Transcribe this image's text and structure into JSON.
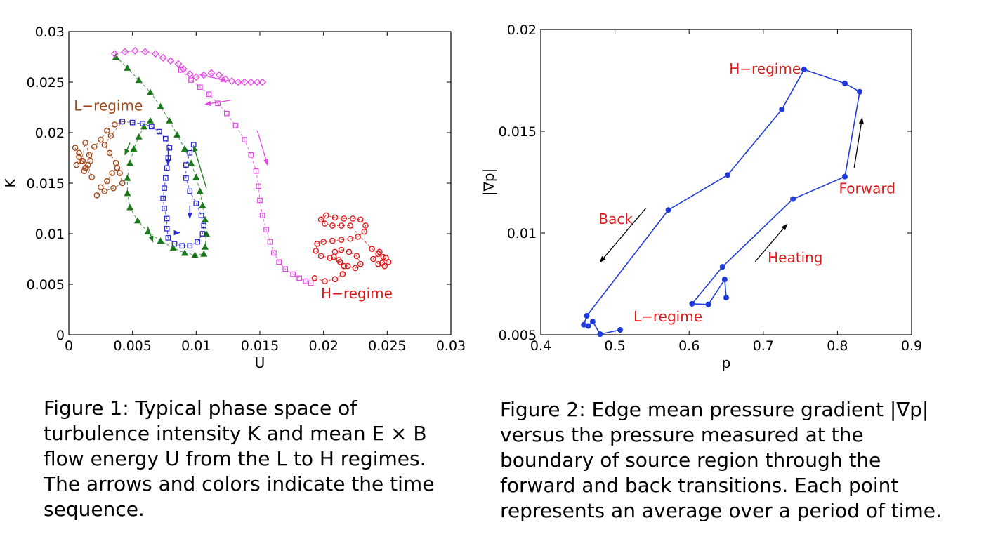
{
  "chart_data": [
    {
      "type": "scatter",
      "xlabel": "U",
      "ylabel": "K",
      "xlim": [
        0,
        0.03
      ],
      "ylim": [
        0,
        0.03
      ],
      "xticks": [
        "0",
        "0.005",
        "0.01",
        "0.015",
        "0.02",
        "0.025",
        "0.03"
      ],
      "yticks": [
        "0",
        "0.005",
        "0.01",
        "0.015",
        "0.02",
        "0.025",
        "0.03"
      ],
      "annotations": [
        {
          "text": "L−regime",
          "x": 0.0004,
          "y": 0.0222,
          "color": "#9b4a1c"
        },
        {
          "text": "H−regime",
          "x": 0.0198,
          "y": 0.0036,
          "color": "#e0191b"
        }
      ],
      "series": [
        {
          "marker": "circle",
          "color": "#a0481b",
          "points": [
            [
              0.0005,
              0.0185
            ],
            [
              0.0008,
              0.0176
            ],
            [
              0.0006,
              0.0168
            ],
            [
              0.001,
              0.0172
            ],
            [
              0.0013,
              0.019
            ],
            [
              0.0016,
              0.0178
            ],
            [
              0.0012,
              0.0162
            ],
            [
              0.0015,
              0.0168
            ],
            [
              0.0018,
              0.0156
            ],
            [
              0.0011,
              0.0172
            ],
            [
              0.0008,
              0.018
            ],
            [
              0.0013,
              0.0165
            ],
            [
              0.0017,
              0.0172
            ],
            [
              0.002,
              0.0186
            ],
            [
              0.0025,
              0.0193
            ],
            [
              0.003,
              0.0202
            ],
            [
              0.0036,
              0.0208
            ],
            [
              0.0042,
              0.0211
            ],
            [
              0.0033,
              0.0197
            ],
            [
              0.0028,
              0.0188
            ],
            [
              0.0032,
              0.018
            ],
            [
              0.0037,
              0.017
            ],
            [
              0.004,
              0.016
            ],
            [
              0.0042,
              0.015
            ],
            [
              0.0035,
              0.0145
            ],
            [
              0.0028,
              0.0142
            ],
            [
              0.0022,
              0.0138
            ],
            [
              0.0025,
              0.0146
            ],
            [
              0.003,
              0.0152
            ],
            [
              0.0034,
              0.016
            ],
            [
              0.0038,
              0.0165
            ]
          ]
        },
        {
          "marker": "triangle",
          "color": "#1a7a1a",
          "points": [
            [
              0.0037,
              0.0275
            ],
            [
              0.0046,
              0.0264
            ],
            [
              0.0055,
              0.0252
            ],
            [
              0.0064,
              0.024
            ],
            [
              0.0072,
              0.0226
            ],
            [
              0.0079,
              0.0212
            ],
            [
              0.0085,
              0.0198
            ],
            [
              0.0091,
              0.0184
            ],
            [
              0.0096,
              0.017
            ],
            [
              0.01,
              0.0156
            ],
            [
              0.0103,
              0.0142
            ],
            [
              0.0105,
              0.0128
            ],
            [
              0.0107,
              0.0114
            ],
            [
              0.0108,
              0.01
            ],
            [
              0.0107,
              0.0087
            ],
            [
              0.0106,
              0.008
            ],
            [
              0.0099,
              0.0079
            ],
            [
              0.0091,
              0.0081
            ],
            [
              0.0082,
              0.0086
            ],
            [
              0.0072,
              0.0093
            ],
            [
              0.0062,
              0.0102
            ],
            [
              0.0054,
              0.0113
            ],
            [
              0.0048,
              0.0126
            ],
            [
              0.0046,
              0.014
            ],
            [
              0.0046,
              0.0155
            ],
            [
              0.0048,
              0.017
            ],
            [
              0.0051,
              0.0184
            ],
            [
              0.0055,
              0.0196
            ],
            [
              0.0059,
              0.0206
            ],
            [
              0.0064,
              0.0212
            ]
          ]
        },
        {
          "marker": "square",
          "color": "#2a2ad0",
          "points": [
            [
              0.0042,
              0.0211
            ],
            [
              0.005,
              0.021
            ],
            [
              0.0058,
              0.0209
            ],
            [
              0.0065,
              0.0206
            ],
            [
              0.0071,
              0.0201
            ],
            [
              0.0076,
              0.0194
            ],
            [
              0.0079,
              0.0185
            ],
            [
              0.0078,
              0.0175
            ],
            [
              0.0077,
              0.0165
            ],
            [
              0.0076,
              0.0155
            ],
            [
              0.0075,
              0.0145
            ],
            [
              0.0074,
              0.0135
            ],
            [
              0.0075,
              0.0125
            ],
            [
              0.0077,
              0.0115
            ],
            [
              0.0077,
              0.0105
            ],
            [
              0.0078,
              0.0096
            ],
            [
              0.0083,
              0.009
            ],
            [
              0.0089,
              0.0088
            ],
            [
              0.0095,
              0.0088
            ],
            [
              0.0101,
              0.0092
            ],
            [
              0.0105,
              0.01
            ],
            [
              0.0106,
              0.0108
            ],
            [
              0.0104,
              0.0118
            ],
            [
              0.01,
              0.013
            ],
            [
              0.0095,
              0.0142
            ],
            [
              0.0092,
              0.0155
            ],
            [
              0.0092,
              0.0168
            ],
            [
              0.0095,
              0.018
            ],
            [
              0.0098,
              0.0188
            ]
          ]
        },
        {
          "marker": "diamond",
          "color": "#e34ae3",
          "points": [
            [
              0.0036,
              0.0278
            ],
            [
              0.0044,
              0.028
            ],
            [
              0.0052,
              0.0281
            ],
            [
              0.006,
              0.028
            ],
            [
              0.0068,
              0.0278
            ],
            [
              0.0074,
              0.0274
            ],
            [
              0.008,
              0.0271
            ],
            [
              0.0086,
              0.0268
            ],
            [
              0.009,
              0.0263
            ],
            [
              0.0095,
              0.0258
            ],
            [
              0.01,
              0.0255
            ],
            [
              0.0106,
              0.0257
            ],
            [
              0.0112,
              0.0259
            ],
            [
              0.0118,
              0.0257
            ],
            [
              0.0123,
              0.0253
            ],
            [
              0.0128,
              0.0251
            ],
            [
              0.0133,
              0.025
            ],
            [
              0.0138,
              0.025
            ],
            [
              0.0143,
              0.025
            ],
            [
              0.0148,
              0.025
            ],
            [
              0.0152,
              0.025
            ]
          ]
        },
        {
          "marker": "square",
          "color": "#e34ae3",
          "points": [
            [
              0.0088,
              0.0262
            ],
            [
              0.0096,
              0.0252
            ],
            [
              0.0103,
              0.0245
            ],
            [
              0.011,
              0.0238
            ],
            [
              0.0117,
              0.0229
            ],
            [
              0.0124,
              0.0219
            ],
            [
              0.0131,
              0.0207
            ],
            [
              0.0138,
              0.0193
            ],
            [
              0.0143,
              0.0178
            ],
            [
              0.0147,
              0.0162
            ],
            [
              0.0149,
              0.0147
            ],
            [
              0.015,
              0.0133
            ],
            [
              0.0152,
              0.0118
            ],
            [
              0.0155,
              0.0104
            ],
            [
              0.0158,
              0.0092
            ],
            [
              0.0161,
              0.0081
            ],
            [
              0.0165,
              0.0072
            ],
            [
              0.017,
              0.0065
            ],
            [
              0.0176,
              0.006
            ],
            [
              0.0181,
              0.0056
            ],
            [
              0.0186,
              0.0053
            ],
            [
              0.019,
              0.0051
            ]
          ]
        },
        {
          "marker": "circle",
          "color": "#e0191b",
          "points": [
            [
              0.0193,
              0.0056
            ],
            [
              0.0201,
              0.0053
            ],
            [
              0.0209,
              0.0055
            ],
            [
              0.0215,
              0.006
            ],
            [
              0.0216,
              0.0068
            ],
            [
              0.0212,
              0.0074
            ],
            [
              0.0208,
              0.0077
            ],
            [
              0.0209,
              0.0082
            ],
            [
              0.0214,
              0.0084
            ],
            [
              0.022,
              0.0082
            ],
            [
              0.0226,
              0.0078
            ],
            [
              0.0229,
              0.007
            ],
            [
              0.0225,
              0.0066
            ],
            [
              0.0219,
              0.0068
            ],
            [
              0.0213,
              0.0072
            ],
            [
              0.0205,
              0.0076
            ],
            [
              0.0198,
              0.0078
            ],
            [
              0.0194,
              0.0083
            ],
            [
              0.0195,
              0.009
            ],
            [
              0.02,
              0.0092
            ],
            [
              0.0207,
              0.0093
            ],
            [
              0.0214,
              0.0094
            ],
            [
              0.0221,
              0.0095
            ],
            [
              0.0227,
              0.0097
            ],
            [
              0.0232,
              0.0102
            ],
            [
              0.0233,
              0.0108
            ],
            [
              0.0229,
              0.0114
            ],
            [
              0.0223,
              0.0115
            ],
            [
              0.0216,
              0.0115
            ],
            [
              0.0209,
              0.0116
            ],
            [
              0.0202,
              0.0118
            ],
            [
              0.0198,
              0.0114
            ],
            [
              0.0201,
              0.011
            ],
            [
              0.0207,
              0.0108
            ],
            [
              0.0214,
              0.0108
            ],
            [
              0.0221,
              0.0108
            ],
            [
              0.0238,
              0.0085
            ],
            [
              0.0243,
              0.008
            ],
            [
              0.0247,
              0.0077
            ],
            [
              0.0251,
              0.0072
            ],
            [
              0.0248,
              0.0068
            ],
            [
              0.0243,
              0.007
            ],
            [
              0.0239,
              0.0075
            ],
            [
              0.0244,
              0.0082
            ],
            [
              0.0249,
              0.0076
            ],
            [
              0.0246,
              0.0071
            ]
          ]
        }
      ],
      "arrows": [
        {
          "from": [
            0.0102,
            0.0258
          ],
          "to": [
            0.0124,
            0.0251
          ],
          "color": "#e34ae3"
        },
        {
          "from": [
            0.0127,
            0.0232
          ],
          "to": [
            0.0107,
            0.0228
          ],
          "color": "#e34ae3"
        },
        {
          "from": [
            0.0148,
            0.0202
          ],
          "to": [
            0.0156,
            0.0168
          ],
          "color": "#e34ae3"
        },
        {
          "from": [
            0.0048,
            0.019
          ],
          "to": [
            0.0044,
            0.0178
          ],
          "color": "#1a7a1a"
        },
        {
          "from": [
            0.0062,
            0.0107
          ],
          "to": [
            0.0066,
            0.0092
          ],
          "color": "#1a7a1a"
        },
        {
          "from": [
            0.0108,
            0.0145
          ],
          "to": [
            0.0098,
            0.0187
          ],
          "color": "#1a7a1a"
        },
        {
          "from": [
            0.0078,
            0.0185
          ],
          "to": [
            0.0078,
            0.0168
          ],
          "color": "#2a2ad0"
        },
        {
          "from": [
            0.0083,
            0.0101
          ],
          "to": [
            0.0087,
            0.0101
          ],
          "color": "#2a2ad0"
        },
        {
          "from": [
            0.0095,
            0.0128
          ],
          "to": [
            0.0095,
            0.0115
          ],
          "color": "#2a2ad0"
        }
      ]
    },
    {
      "type": "line",
      "xlabel": "p",
      "ylabel": "|∇p|",
      "xlim": [
        0.4,
        0.9
      ],
      "ylim": [
        0.005,
        0.02
      ],
      "xticks": [
        "0.4",
        "0.5",
        "0.6",
        "0.7",
        "0.8",
        "0.9"
      ],
      "yticks": [
        "0.005",
        "0.01",
        "0.015",
        "0.02"
      ],
      "series": [
        {
          "color": "#1f3ad6",
          "points": [
            [
              0.507,
              0.00524
            ],
            [
              0.48,
              0.00503
            ],
            [
              0.47,
              0.00565
            ],
            [
              0.464,
              0.00543
            ],
            [
              0.458,
              0.00549
            ],
            [
              0.462,
              0.00593
            ],
            [
              0.572,
              0.01113
            ],
            [
              0.652,
              0.01285
            ],
            [
              0.725,
              0.01607
            ],
            [
              0.755,
              0.01803
            ],
            [
              0.81,
              0.01735
            ],
            [
              0.83,
              0.01694
            ],
            [
              0.81,
              0.01277
            ],
            [
              0.74,
              0.01167
            ],
            [
              0.645,
              0.00834
            ],
            [
              0.604,
              0.00652
            ],
            [
              0.626,
              0.00649
            ],
            [
              0.648,
              0.00772
            ],
            [
              0.65,
              0.00682
            ]
          ]
        }
      ],
      "annotations": [
        {
          "text": "H−regime",
          "x": 0.654,
          "y": 0.01783,
          "color": "#e0191b"
        },
        {
          "text": "Forward",
          "x": 0.802,
          "y": 0.01195,
          "color": "#e0191b"
        },
        {
          "text": "Back",
          "x": 0.478,
          "y": 0.01045,
          "color": "#e0191b"
        },
        {
          "text": "Heating",
          "x": 0.706,
          "y": 0.00855,
          "color": "#e0191b"
        },
        {
          "text": "L−regime",
          "x": 0.525,
          "y": 0.00565,
          "color": "#e0191b"
        }
      ],
      "arrows": [
        {
          "from": [
            0.8225,
            0.0132
          ],
          "to": [
            0.8333,
            0.01565
          ],
          "color": "#000000"
        },
        {
          "from": [
            0.542,
            0.01123
          ],
          "to": [
            0.48,
            0.00857
          ],
          "color": "#000000"
        },
        {
          "from": [
            0.689,
            0.00859
          ],
          "to": [
            0.732,
            0.01043
          ],
          "color": "#000000"
        }
      ]
    }
  ],
  "captions": {
    "fig1": [
      "Figure 1:  Typical phase space of",
      "turbulence intensity K and mean E × B",
      "flow energy U from the L to H regimes.",
      "The arrows and colors indicate the time",
      "sequence."
    ],
    "fig2": [
      "Figure 2:  Edge mean pressure gradient |∇p|",
      "versus the pressure measured at the",
      "boundary of source region through the",
      "forward and back transitions. Each point",
      "represents an average over a period of time."
    ]
  }
}
